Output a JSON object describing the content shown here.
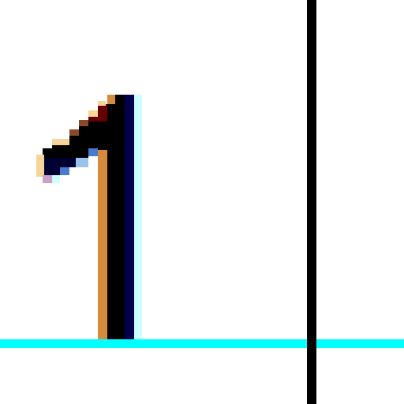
{
  "glyph": {
    "character": "1",
    "colors": {
      "stroke_main": "#000000",
      "stroke_shadow_dark": "#000033",
      "stroke_shadow_navy": "#00004d",
      "highlight_cyan": "#ccffff",
      "edge_orange": "#d58a3c",
      "edge_light": "#f7d59a",
      "edge_dark_red": "#660000",
      "edge_brown": "#8a4a2a",
      "edge_blue": "#4a7acd",
      "edge_light_blue": "#9bc3ea",
      "edge_lavender": "#c8a0c8"
    }
  },
  "guides": {
    "baseline_color": "#00ffff",
    "cursor_color": "#000000"
  }
}
